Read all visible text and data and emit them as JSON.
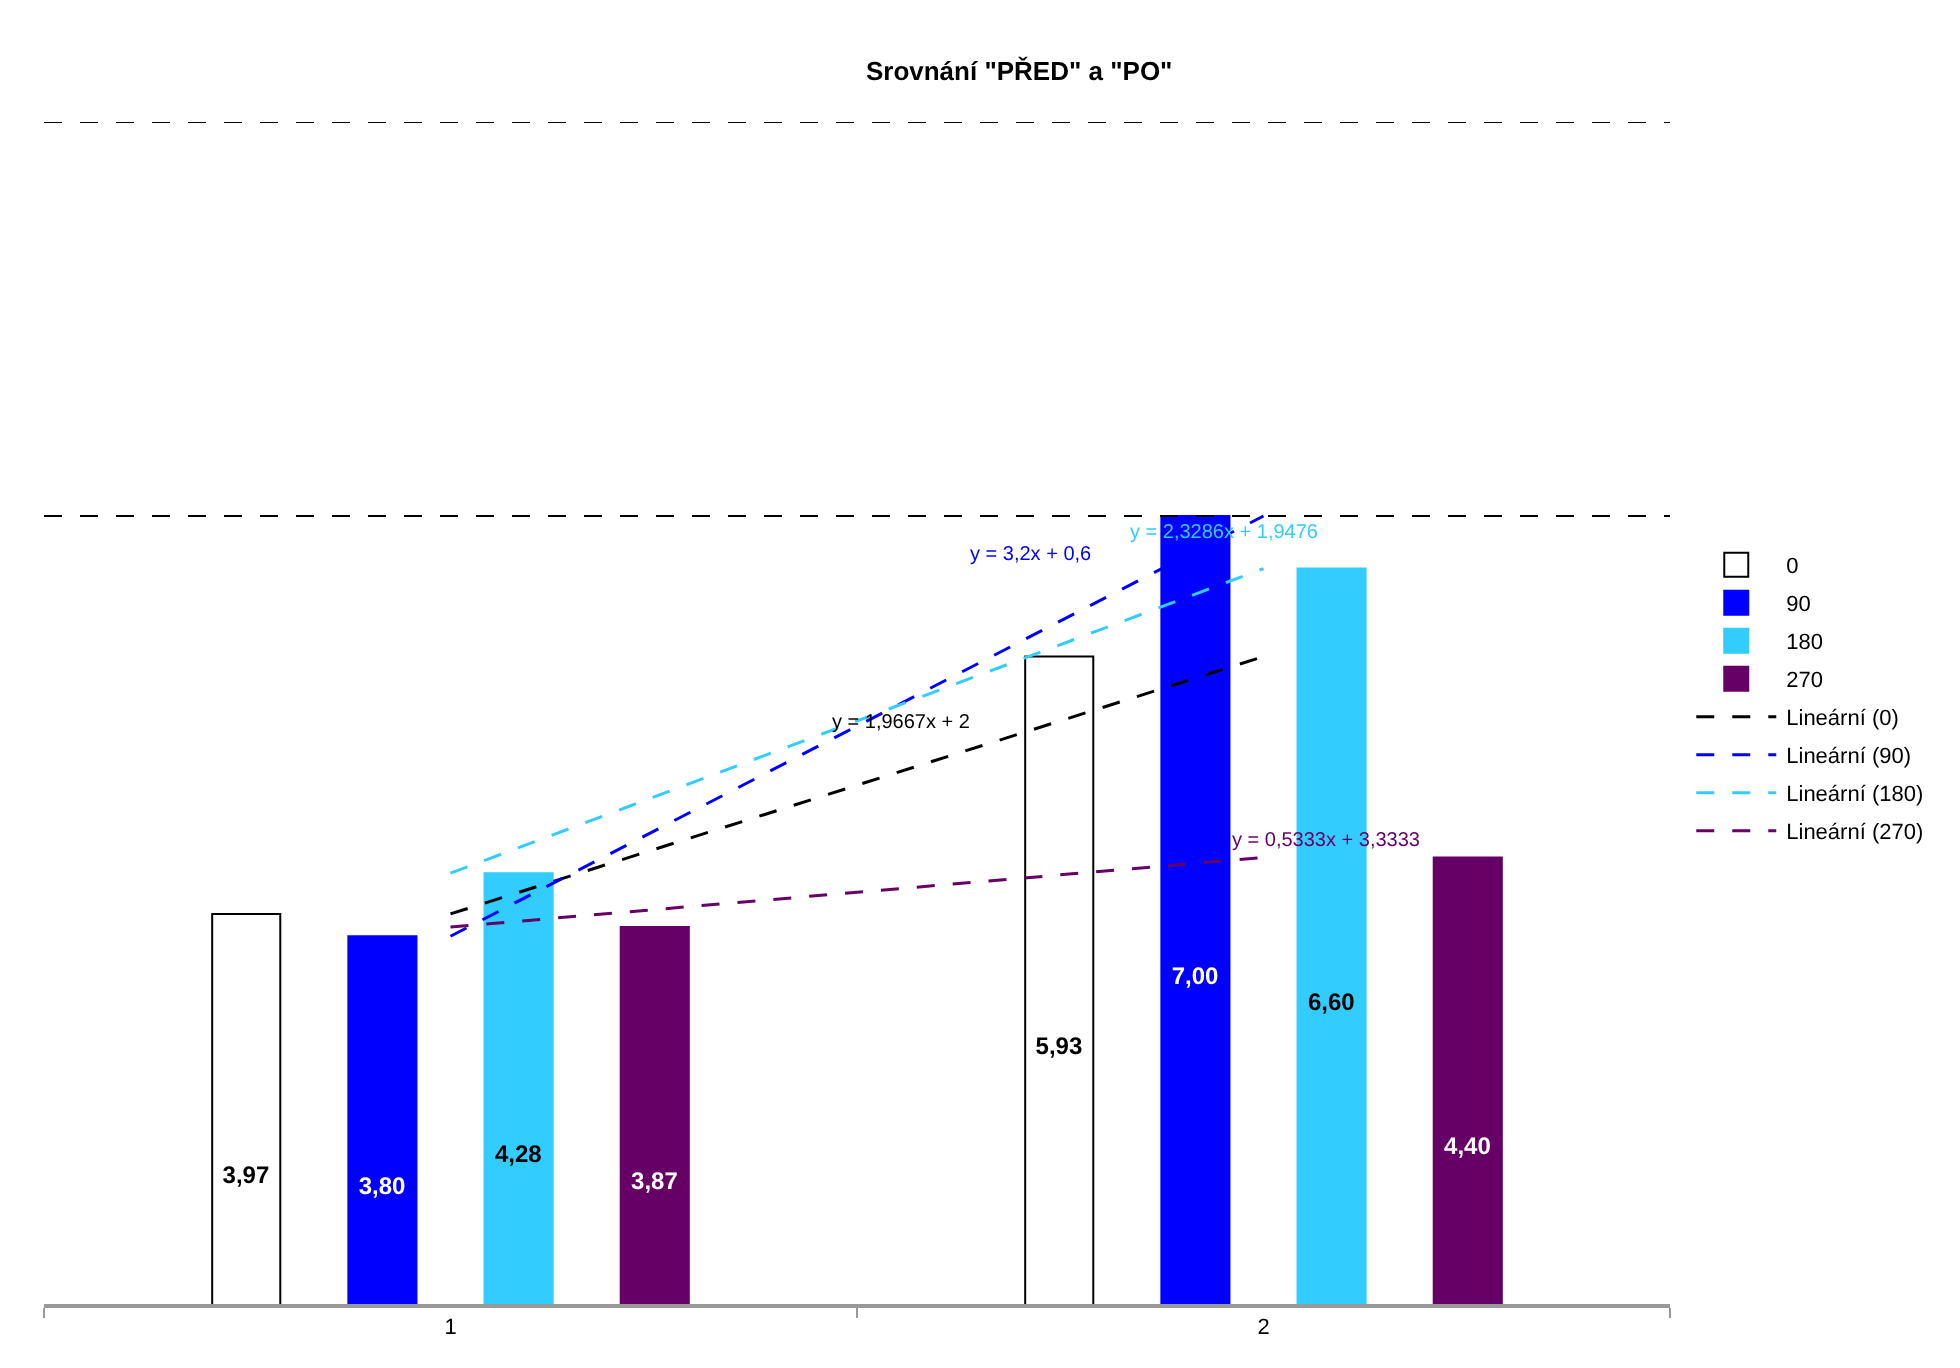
{
  "chart_data": {
    "type": "bar",
    "title": "Srovnání \"PŘED\" a \"PO\"",
    "categories": [
      "1",
      "2"
    ],
    "ylim": [
      1,
      10
    ],
    "tick_labels": "x",
    "grid": false,
    "legend": "right",
    "series": [
      {
        "name": "0",
        "color": "#ffffff",
        "values": [
          3.97,
          5.93
        ],
        "value_labels": [
          "3,97",
          "5,93"
        ]
      },
      {
        "name": "90",
        "color": "#0000ff",
        "values": [
          3.8,
          7.0
        ],
        "value_labels": [
          "3,80",
          "7,00"
        ]
      },
      {
        "name": "180",
        "color": "#33ccff",
        "values": [
          4.28,
          6.6
        ],
        "value_labels": [
          "4,28",
          "6,60"
        ]
      },
      {
        "name": "270",
        "color": "#660066",
        "values": [
          3.87,
          4.4
        ],
        "value_labels": [
          "3,87",
          "4,40"
        ]
      },
      {
        "name": "Lineární (0)",
        "type": "line",
        "line_style": "dashed",
        "color": "#000000",
        "x": [
          "1",
          "2"
        ],
        "values": [
          3.97,
          5.93
        ]
      },
      {
        "name": "Lineární (90)",
        "type": "line",
        "line_style": "dashed",
        "color": "#0000ff",
        "x": [
          "1",
          "2"
        ],
        "values": [
          3.8,
          7.0
        ]
      },
      {
        "name": "Lineární (180)",
        "type": "line",
        "line_style": "dashed",
        "color": "#33ccff",
        "x": [
          "1",
          "2"
        ],
        "values": [
          4.28,
          6.6
        ]
      },
      {
        "name": "Lineární (270)",
        "type": "line",
        "line_style": "dashed",
        "color": "#660066",
        "x": [
          "1",
          "2"
        ],
        "values": [
          3.87,
          4.4
        ]
      }
    ],
    "annotations": [
      "y = 1,9667x + 2",
      "y = 3,2x + 0,6",
      "y = 2,3286x + 1,9476",
      "y = 0,5333x + 3,3333"
    ],
    "ref_lines": [
      {
        "axis": "y",
        "value": 10,
        "color": "#000000",
        "line_style": "dashed"
      },
      {
        "axis": "y",
        "value": 7,
        "color": "#000000",
        "line_style": "dashed"
      }
    ]
  }
}
